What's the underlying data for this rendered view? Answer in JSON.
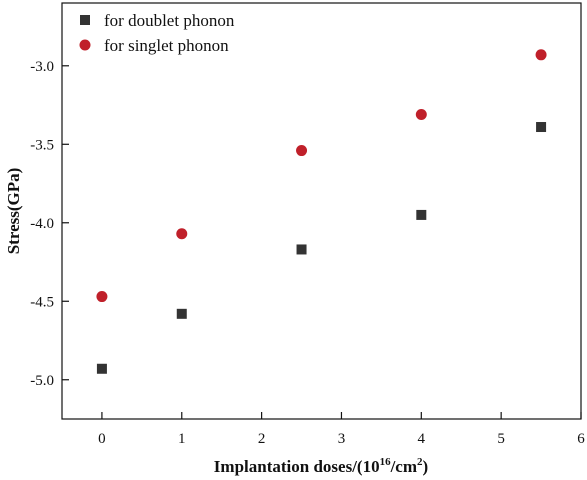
{
  "chart_data": {
    "type": "scatter",
    "x_ticks": [
      0,
      1,
      2,
      3,
      4,
      5,
      6
    ],
    "y_ticks": [
      -5.0,
      -4.5,
      -4.0,
      -3.5,
      -3.0
    ],
    "x_tick_labels": [
      "0",
      "1",
      "2",
      "3",
      "4",
      "5",
      "6"
    ],
    "y_tick_labels": [
      "-5.0",
      "-4.5",
      "-4.0",
      "-3.5",
      "-3.0"
    ],
    "xlim": [
      -0.5,
      6
    ],
    "ylim": [
      -5.25,
      -2.6
    ],
    "xlabel": {
      "prefix": "Implantation doses/(10",
      "sup1": "16",
      "mid": "/cm",
      "sup2": "2",
      "suffix": ")"
    },
    "ylabel": "Stress(GPa)",
    "legend_position": "top-left",
    "grid": false,
    "series": [
      {
        "name": "for doublet phonon",
        "marker": "square",
        "color": "#333333",
        "x": [
          0,
          1,
          2.5,
          4,
          5.5
        ],
        "y": [
          -4.93,
          -4.58,
          -4.17,
          -3.95,
          -3.39
        ]
      },
      {
        "name": "for singlet phonon",
        "marker": "circle",
        "color": "#c0202a",
        "x": [
          0,
          1,
          2.5,
          4,
          5.5
        ],
        "y": [
          -4.47,
          -4.07,
          -3.54,
          -3.31,
          -2.93
        ]
      }
    ]
  }
}
